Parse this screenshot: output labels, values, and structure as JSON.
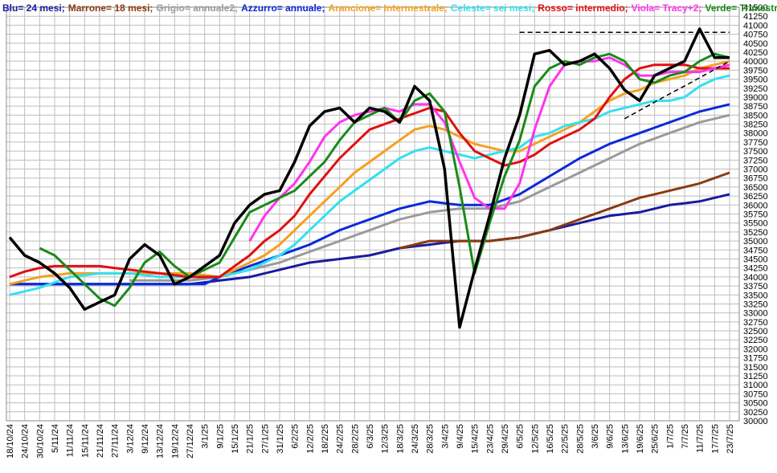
{
  "chart_data": {
    "type": "line",
    "categories": [
      "18/10/24",
      "24/10/24",
      "30/10/24",
      "5/11/24",
      "11/11/24",
      "15/11/24",
      "21/11/24",
      "27/11/24",
      "3/12/24",
      "9/12/24",
      "13/12/24",
      "19/12/24",
      "27/12/24",
      "3/1/25",
      "9/1/25",
      "15/1/25",
      "21/1/25",
      "27/1/25",
      "31/1/25",
      "6/2/25",
      "12/2/25",
      "18/2/25",
      "24/2/25",
      "28/2/25",
      "6/3/25",
      "12/3/25",
      "18/3/25",
      "24/3/25",
      "28/3/25",
      "3/4/25",
      "9/4/25",
      "15/4/25",
      "23/4/25",
      "29/4/25",
      "6/5/25",
      "12/5/25",
      "16/5/25",
      "22/5/25",
      "28/5/25",
      "3/6/25",
      "9/6/25",
      "13/6/25",
      "19/6/25",
      "25/6/25",
      "1/7/25",
      "7/7/25",
      "11/7/25",
      "17/7/25",
      "23/7/25"
    ],
    "series": [
      {
        "name": "Blu= 24 mesi;",
        "color": "#1a1aa0",
        "values": [
          33800,
          33800,
          33800,
          33800,
          33800,
          33800,
          33800,
          33800,
          33800,
          33800,
          33800,
          33800,
          33800,
          33850,
          33900,
          33950,
          34000,
          34100,
          34200,
          34300,
          34400,
          34450,
          34500,
          34550,
          34600,
          34700,
          34800,
          34850,
          34900,
          34950,
          35000,
          35000,
          35000,
          35050,
          35100,
          35200,
          35300,
          35400,
          35500,
          35600,
          35700,
          35750,
          35800,
          35900,
          36000,
          36050,
          36100,
          36200,
          36300
        ]
      },
      {
        "name": "Marrone= 18 mesi;",
        "color": "#8b3a0f",
        "values": [
          null,
          null,
          null,
          null,
          null,
          null,
          null,
          null,
          null,
          null,
          null,
          null,
          null,
          null,
          null,
          null,
          null,
          null,
          null,
          null,
          null,
          null,
          null,
          null,
          null,
          null,
          34800,
          34900,
          35000,
          35000,
          35000,
          35000,
          35000,
          35050,
          35100,
          35200,
          35300,
          35450,
          35600,
          35750,
          35900,
          36050,
          36200,
          36300,
          36400,
          36500,
          36600,
          36750,
          36900
        ]
      },
      {
        "name": "Grigio= annuale2;",
        "color": "#9a9a9a",
        "values": [
          null,
          null,
          null,
          null,
          null,
          null,
          null,
          null,
          33900,
          33900,
          33900,
          33900,
          33900,
          33950,
          34000,
          34100,
          34200,
          34300,
          34400,
          34550,
          34700,
          34850,
          35000,
          35150,
          35300,
          35450,
          35600,
          35700,
          35800,
          35850,
          35900,
          35900,
          35900,
          36000,
          36100,
          36300,
          36500,
          36700,
          36900,
          37100,
          37300,
          37500,
          37700,
          37850,
          38000,
          38150,
          38300,
          38400,
          38500
        ]
      },
      {
        "name": "Azzurro= annuale;",
        "color": "#0a2ad8",
        "values": [
          33800,
          33800,
          33800,
          33800,
          33800,
          33800,
          33800,
          33800,
          33800,
          33800,
          33800,
          33800,
          33800,
          33800,
          34000,
          34150,
          34300,
          34450,
          34600,
          34750,
          34900,
          35100,
          35300,
          35450,
          35600,
          35750,
          35900,
          36000,
          36100,
          36050,
          36000,
          36000,
          36000,
          36150,
          36300,
          36550,
          36800,
          37050,
          37300,
          37500,
          37700,
          37850,
          38000,
          38150,
          38300,
          38450,
          38600,
          38700,
          38800
        ]
      },
      {
        "name": "Arancione= Intermestrale;",
        "color": "#f5a020",
        "values": [
          33800,
          33900,
          34000,
          34050,
          34100,
          34100,
          34100,
          34100,
          34100,
          34100,
          34100,
          34100,
          34100,
          34050,
          34000,
          34200,
          34400,
          34600,
          34900,
          35300,
          35700,
          36100,
          36500,
          36900,
          37200,
          37500,
          37800,
          38100,
          38200,
          38100,
          37900,
          37700,
          37600,
          37500,
          37500,
          37700,
          37900,
          38100,
          38300,
          38600,
          38900,
          39100,
          39200,
          39400,
          39500,
          39600,
          39800,
          39900,
          40000
        ]
      },
      {
        "name": "Celeste= sei mesi;",
        "color": "#33e0f0",
        "values": [
          33500,
          33600,
          33700,
          33850,
          34000,
          34050,
          34100,
          34100,
          34100,
          34050,
          34000,
          34000,
          34000,
          34000,
          34000,
          34100,
          34200,
          34400,
          34600,
          34900,
          35300,
          35700,
          36100,
          36400,
          36700,
          37000,
          37300,
          37500,
          37600,
          37500,
          37400,
          37300,
          37400,
          37500,
          37600,
          37900,
          38000,
          38200,
          38300,
          38400,
          38600,
          38700,
          38800,
          38900,
          38900,
          39000,
          39300,
          39500,
          39600
        ]
      },
      {
        "name": "Rosso= intermedio;",
        "color": "#e01010",
        "values": [
          34000,
          34150,
          34250,
          34300,
          34300,
          34300,
          34300,
          34250,
          34200,
          34150,
          34100,
          34050,
          34000,
          34000,
          34000,
          34300,
          34600,
          35000,
          35300,
          35700,
          36300,
          36800,
          37300,
          37700,
          38100,
          38250,
          38400,
          38550,
          38700,
          38600,
          38000,
          37500,
          37300,
          37100,
          37200,
          37400,
          37700,
          37900,
          38100,
          38400,
          39000,
          39500,
          39800,
          39900,
          39900,
          39900,
          39800,
          39800,
          39800
        ]
      },
      {
        "name": "Viola= Tracy+2;",
        "color": "#ff33ee",
        "values": [
          null,
          null,
          null,
          null,
          null,
          null,
          null,
          null,
          null,
          null,
          null,
          null,
          null,
          null,
          null,
          null,
          35000,
          35700,
          36200,
          36600,
          37200,
          37900,
          38300,
          38500,
          38600,
          38700,
          38600,
          38800,
          38800,
          38300,
          37200,
          36200,
          35900,
          35900,
          36600,
          38100,
          39300,
          39900,
          40000,
          40000,
          40100,
          39900,
          39600,
          39600,
          39700,
          39700,
          39700,
          39800,
          39900
        ]
      },
      {
        "name": "Verde= Trimestrale",
        "color": "#1a8a1a",
        "values": [
          null,
          null,
          34800,
          34600,
          34200,
          33800,
          33400,
          33200,
          33700,
          34400,
          34700,
          34300,
          34000,
          34200,
          34400,
          35100,
          35800,
          36000,
          36200,
          36400,
          36800,
          37200,
          37800,
          38300,
          38500,
          38700,
          38300,
          38900,
          39100,
          38600,
          36500,
          34100,
          35500,
          36800,
          37800,
          39300,
          39800,
          40000,
          39900,
          40100,
          40200,
          40000,
          39500,
          39400,
          39600,
          39700,
          40000,
          40200,
          40100
        ]
      },
      {
        "color": "#000000",
        "width": 3.5,
        "values": [
          35100,
          34600,
          34400,
          34100,
          33700,
          33100,
          33300,
          33500,
          34500,
          34900,
          34600,
          33800,
          34000,
          34300,
          34600,
          35500,
          36000,
          36300,
          36400,
          37200,
          38200,
          38600,
          38700,
          38300,
          38700,
          38600,
          38300,
          39300,
          38900,
          37000,
          32600,
          34200,
          35700,
          37300,
          38500,
          40200,
          40300,
          39900,
          40000,
          40200,
          39800,
          39200,
          38900,
          39600,
          39800,
          40000,
          40900,
          40100,
          40100
        ]
      },
      {
        "color": "#000000",
        "dash": true,
        "width": 1.5,
        "values": [
          null,
          null,
          null,
          null,
          null,
          null,
          null,
          null,
          null,
          null,
          null,
          null,
          null,
          null,
          null,
          null,
          null,
          null,
          null,
          null,
          null,
          null,
          null,
          null,
          null,
          null,
          null,
          null,
          null,
          null,
          null,
          null,
          null,
          null,
          40800,
          40800,
          40800,
          40800,
          40800,
          40800,
          40800,
          40800,
          40800,
          40800,
          40800,
          40800,
          40800,
          40800,
          40800
        ]
      },
      {
        "color": "#000000",
        "dash": true,
        "width": 1.5,
        "values": [
          null,
          null,
          null,
          null,
          null,
          null,
          null,
          null,
          null,
          null,
          null,
          null,
          null,
          null,
          null,
          null,
          null,
          null,
          null,
          null,
          null,
          null,
          null,
          null,
          null,
          null,
          null,
          null,
          null,
          null,
          null,
          null,
          null,
          null,
          null,
          null,
          null,
          null,
          null,
          null,
          null,
          38400,
          38630,
          38860,
          39090,
          39310,
          39540,
          39770,
          40000
        ]
      }
    ],
    "ylim": [
      30000,
      41500
    ],
    "yticks": [
      30000,
      30250,
      30500,
      30750,
      31000,
      31250,
      31500,
      31750,
      32000,
      32250,
      32500,
      32750,
      33000,
      33250,
      33500,
      33750,
      34000,
      34250,
      34500,
      34750,
      35000,
      35250,
      35500,
      35750,
      36000,
      36250,
      36500,
      36750,
      37000,
      37250,
      37500,
      37750,
      38000,
      38250,
      38500,
      38750,
      39000,
      39250,
      39500,
      39750,
      40000,
      40250,
      40500,
      40750,
      41000,
      41250,
      41500
    ],
    "grid": true
  }
}
